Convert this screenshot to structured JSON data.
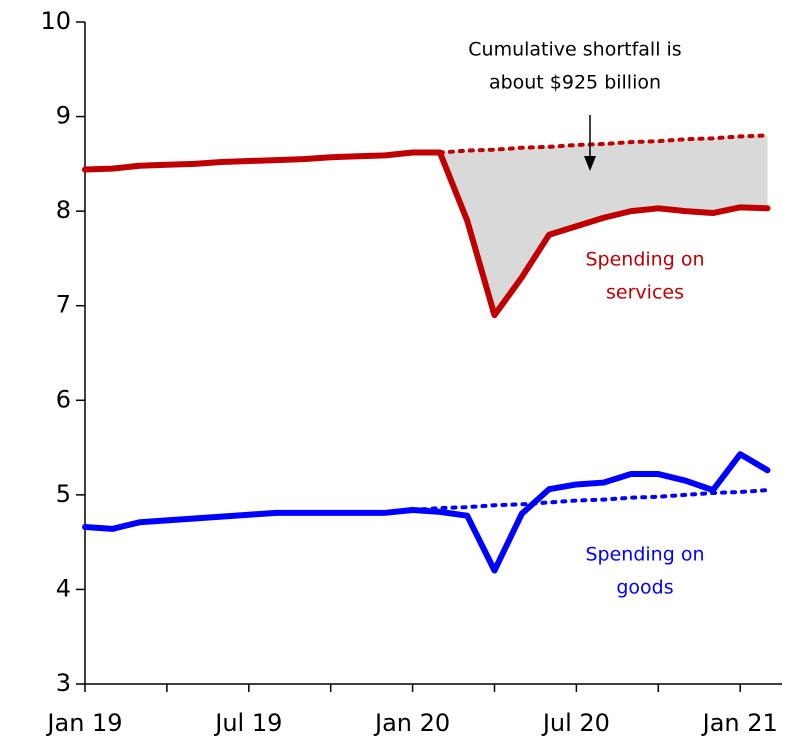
{
  "chart_data": {
    "type": "line",
    "categories": [
      "Jan 19",
      null,
      null,
      null,
      null,
      null,
      "Jul 19",
      null,
      null,
      null,
      null,
      null,
      "Jan 20",
      null,
      null,
      null,
      null,
      null,
      "Jul 20",
      null,
      null,
      null,
      null,
      null,
      "Jan 21",
      null
    ],
    "series": [
      {
        "color": "#c00000",
        "style": "solid",
        "values": [
          8.44,
          8.45,
          8.48,
          8.49,
          8.5,
          8.52,
          8.53,
          8.54,
          8.55,
          8.57,
          8.58,
          8.59,
          8.62,
          8.62,
          7.9,
          6.9,
          7.3,
          7.75,
          7.84,
          7.93,
          8.0,
          8.03,
          8.0,
          7.98,
          8.04,
          8.03
        ]
      },
      {
        "color": "#0000ff",
        "style": "solid",
        "values": [
          4.66,
          4.64,
          4.71,
          4.73,
          4.75,
          4.77,
          4.79,
          4.81,
          4.81,
          4.81,
          4.81,
          4.81,
          4.84,
          4.82,
          4.78,
          4.2,
          4.8,
          5.06,
          5.11,
          5.13,
          5.22,
          5.22,
          5.15,
          5.05,
          5.43,
          5.26
        ]
      },
      {
        "color": "#c00000",
        "style": "dotted",
        "values": [
          null,
          null,
          null,
          null,
          null,
          null,
          null,
          null,
          null,
          null,
          null,
          null,
          null,
          8.62,
          8.64,
          8.65,
          8.67,
          8.68,
          8.7,
          8.71,
          8.73,
          8.74,
          8.76,
          8.77,
          8.79,
          8.8
        ]
      },
      {
        "color": "#0000ff",
        "style": "dotted",
        "values": [
          null,
          null,
          null,
          null,
          null,
          null,
          null,
          null,
          null,
          null,
          null,
          null,
          4.84,
          4.86,
          4.87,
          4.89,
          4.9,
          4.92,
          4.94,
          4.95,
          4.97,
          4.98,
          5.0,
          5.02,
          5.03,
          5.05
        ]
      }
    ],
    "ylim": [
      3,
      10
    ],
    "yticks": [
      3,
      4,
      5,
      6,
      7,
      8,
      9,
      10
    ],
    "grid": false,
    "annotations": [
      {
        "lines": [
          "Cumulative shortfall is",
          "about $925 billion"
        ],
        "color": "#000000"
      },
      {
        "lines": [
          "Spending on",
          "services"
        ],
        "color": "#c00000"
      },
      {
        "lines": [
          "Spending on",
          "goods"
        ],
        "color": "#0000ff"
      }
    ]
  }
}
